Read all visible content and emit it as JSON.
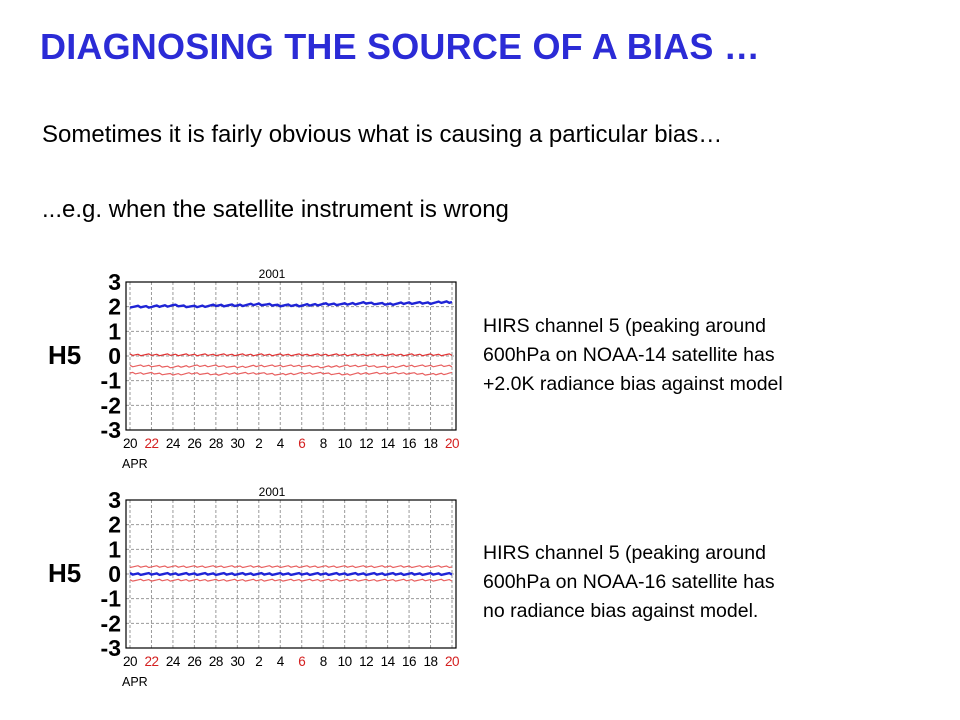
{
  "slide": {
    "title": "DIAGNOSING THE SOURCE OF A BIAS …",
    "line1": "Sometimes it is fairly obvious what is causing a particular bias…",
    "line2": "...e.g. when the satellite instrument is wrong",
    "title_color": "#2b2bd6"
  },
  "captions": [
    {
      "lines": [
        "HIRS channel 5 (peaking around",
        "600hPa on NOAA-14 satellite has",
        "+2.0K radiance bias against model"
      ]
    },
    {
      "lines": [
        "HIRS channel 5 (peaking around",
        "600hPa on NOAA-16 satellite has",
        "no radiance bias against model."
      ]
    }
  ],
  "chart_data": [
    {
      "type": "line",
      "title": "2001",
      "ylabel": "H5",
      "xlabel": "APR",
      "ylim": [
        -3,
        3
      ],
      "yticks": [
        "3",
        "2",
        "1",
        "0",
        "-1",
        "-2",
        "-3"
      ],
      "xticks": [
        "20",
        "22",
        "24",
        "26",
        "28",
        "30",
        "2",
        "4",
        "6",
        "8",
        "10",
        "12",
        "14",
        "16",
        "18",
        "20"
      ],
      "xtick_colors": [
        "#000000",
        "#d42020",
        "#000000",
        "#000000",
        "#000000",
        "#000000",
        "#000000",
        "#000000",
        "#d42020",
        "#000000",
        "#000000",
        "#000000",
        "#000000",
        "#000000",
        "#000000",
        "#d42020"
      ],
      "grid": true,
      "series": [
        {
          "color": "#1f24d6",
          "values": [
            2.0,
            2.0,
            2.05,
            2.0,
            2.05,
            2.05,
            2.1,
            2.05,
            2.05,
            2.1,
            2.1,
            2.15,
            2.1,
            2.15,
            2.15,
            2.2
          ]
        },
        {
          "color": "#e23232",
          "values": [
            0.05,
            0.05,
            0.05,
            0.05,
            0.05,
            0.05,
            0.05,
            0.05,
            0.05,
            0.05,
            0.05,
            0.05,
            0.05,
            0.05,
            0.05,
            0.05
          ]
        },
        {
          "color": "#e86060",
          "values": [
            -0.4,
            -0.4,
            -0.45,
            -0.4,
            -0.4,
            -0.45,
            -0.4,
            -0.4,
            -0.4,
            -0.45,
            -0.4,
            -0.4,
            -0.45,
            -0.4,
            -0.4,
            -0.4
          ]
        },
        {
          "color": "#e86060",
          "values": [
            -0.7,
            -0.7,
            -0.75,
            -0.7,
            -0.75,
            -0.7,
            -0.7,
            -0.75,
            -0.7,
            -0.7,
            -0.75,
            -0.7,
            -0.7,
            -0.7,
            -0.75,
            -0.7
          ]
        }
      ]
    },
    {
      "type": "line",
      "title": "2001",
      "ylabel": "H5",
      "xlabel": "APR",
      "ylim": [
        -3,
        3
      ],
      "yticks": [
        "3",
        "2",
        "1",
        "0",
        "-1",
        "-2",
        "-3"
      ],
      "xticks": [
        "20",
        "22",
        "24",
        "26",
        "28",
        "30",
        "2",
        "4",
        "6",
        "8",
        "10",
        "12",
        "14",
        "16",
        "18",
        "20"
      ],
      "xtick_colors": [
        "#000000",
        "#d42020",
        "#000000",
        "#000000",
        "#000000",
        "#000000",
        "#000000",
        "#000000",
        "#d42020",
        "#000000",
        "#000000",
        "#000000",
        "#000000",
        "#000000",
        "#000000",
        "#d42020"
      ],
      "grid": true,
      "series": [
        {
          "color": "#e86060",
          "values": [
            0.3,
            0.3,
            0.3,
            0.3,
            0.3,
            0.3,
            0.3,
            0.3,
            0.3,
            0.3,
            0.3,
            0.3,
            0.3,
            0.3,
            0.3,
            0.3
          ]
        },
        {
          "color": "#1f24d6",
          "values": [
            0.0,
            0.0,
            0.0,
            0.0,
            0.0,
            0.0,
            0.0,
            0.0,
            0.0,
            0.0,
            0.0,
            0.0,
            0.0,
            0.0,
            0.0,
            0.0
          ]
        },
        {
          "color": "#e86060",
          "values": [
            -0.25,
            -0.25,
            -0.25,
            -0.25,
            -0.25,
            -0.25,
            -0.25,
            -0.25,
            -0.25,
            -0.25,
            -0.25,
            -0.25,
            -0.25,
            -0.25,
            -0.25,
            -0.25
          ]
        }
      ]
    }
  ]
}
